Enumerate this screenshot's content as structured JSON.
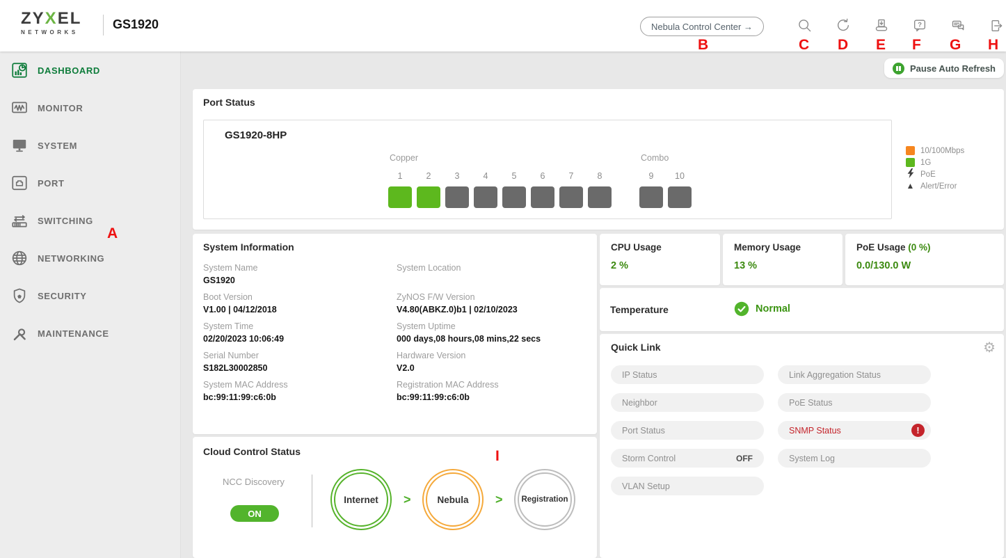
{
  "header": {
    "brand_line1": "ZYXEL",
    "brand_line1_pre": "ZY",
    "brand_line1_x": "X",
    "brand_line1_post": "EL",
    "brand_line2": "NETWORKS",
    "model": "GS1920",
    "nebula_button_label": "Nebula Control Center →",
    "icons": [
      "search",
      "refresh",
      "save-config",
      "help",
      "feedback",
      "logout"
    ]
  },
  "toolbar": {
    "pause_auto_refresh": "Pause Auto Refresh"
  },
  "annotations": [
    "A",
    "B",
    "C",
    "D",
    "E",
    "F",
    "G",
    "H",
    "I"
  ],
  "sidebar": {
    "items": [
      {
        "label": "DASHBOARD",
        "active": true
      },
      {
        "label": "MONITOR",
        "active": false
      },
      {
        "label": "SYSTEM",
        "active": false
      },
      {
        "label": "PORT",
        "active": false
      },
      {
        "label": "SWITCHING",
        "active": false
      },
      {
        "label": "NETWORKING",
        "active": false
      },
      {
        "label": "SECURITY",
        "active": false
      },
      {
        "label": "MAINTENANCE",
        "active": false
      }
    ]
  },
  "port_status": {
    "title": "Port Status",
    "device_name": "GS1920-8HP",
    "groups": [
      {
        "label": "Copper",
        "ports": [
          {
            "num": "1",
            "state": "up"
          },
          {
            "num": "2",
            "state": "up"
          },
          {
            "num": "3",
            "state": "down"
          },
          {
            "num": "4",
            "state": "down"
          },
          {
            "num": "5",
            "state": "down"
          },
          {
            "num": "6",
            "state": "down"
          },
          {
            "num": "7",
            "state": "down"
          },
          {
            "num": "8",
            "state": "down"
          }
        ]
      },
      {
        "label": "Combo",
        "ports": [
          {
            "num": "9",
            "state": "down"
          },
          {
            "num": "10",
            "state": "down"
          }
        ]
      }
    ],
    "legend": [
      {
        "label": "10/100Mbps",
        "swatch": "square",
        "color": "#f6861f"
      },
      {
        "label": "1G",
        "swatch": "square",
        "color": "#5db81e"
      },
      {
        "label": "PoE",
        "swatch": "bolt",
        "color": "#3f3f3f"
      },
      {
        "label": "Alert/Error",
        "swatch": "triangle",
        "color": "#3f3f3f"
      }
    ]
  },
  "system_information": {
    "title": "System Information",
    "columns": [
      [
        {
          "label": "System Name",
          "value": "GS1920"
        },
        {
          "label": "Boot Version",
          "value": "V1.00 | 04/12/2018"
        },
        {
          "label": "System Time",
          "value": "02/20/2023 10:06:49"
        },
        {
          "label": "Serial Number",
          "value": "S182L30002850"
        },
        {
          "label": "System MAC Address",
          "value": "bc:99:11:99:c6:0b"
        }
      ],
      [
        {
          "label": "System Location",
          "value": ""
        },
        {
          "label": "ZyNOS F/W Version",
          "value": "V4.80(ABKZ.0)b1 | 02/10/2023"
        },
        {
          "label": "System Uptime",
          "value": "000 days,08 hours,08 mins,22 secs"
        },
        {
          "label": "Hardware Version",
          "value": "V2.0"
        },
        {
          "label": "Registration MAC Address",
          "value": "bc:99:11:99:c6:0b"
        }
      ]
    ]
  },
  "stats": {
    "cpu": {
      "title": "CPU Usage",
      "value": "2 %"
    },
    "memory": {
      "title": "Memory Usage",
      "value": "13 %"
    },
    "poe": {
      "title": "PoE Usage",
      "percent": "(0 %)",
      "value": "0.0/130.0 W"
    }
  },
  "temperature": {
    "title": "Temperature",
    "status": "Normal"
  },
  "quick_link": {
    "title": "Quick Link",
    "columns": [
      [
        {
          "label": "IP Status"
        },
        {
          "label": "Neighbor"
        },
        {
          "label": "Port Status"
        },
        {
          "label": "Storm Control",
          "badge": "OFF"
        },
        {
          "label": "VLAN Setup"
        }
      ],
      [
        {
          "label": "Link Aggregation Status"
        },
        {
          "label": "PoE Status"
        },
        {
          "label": "SNMP Status",
          "alert": true
        },
        {
          "label": "System Log"
        }
      ]
    ]
  },
  "cloud_control": {
    "title": "Cloud Control Status",
    "ncc_discovery_label": "NCC Discovery",
    "toggle_state": "ON",
    "steps": [
      {
        "label": "Internet",
        "state": "connected"
      },
      {
        "label": "Nebula",
        "state": "pending"
      },
      {
        "label": "Registration",
        "state": "inactive"
      }
    ]
  },
  "colors": {
    "brand_bright_green": "#5db81e",
    "active_nav_green": "#0d7c3a",
    "value_green": "#3c8a10",
    "alert_red": "#c4242b",
    "annotation_red": "#ee1111",
    "nebula_orange": "#f5a93b",
    "port_down_gray": "#6a6a6a"
  }
}
